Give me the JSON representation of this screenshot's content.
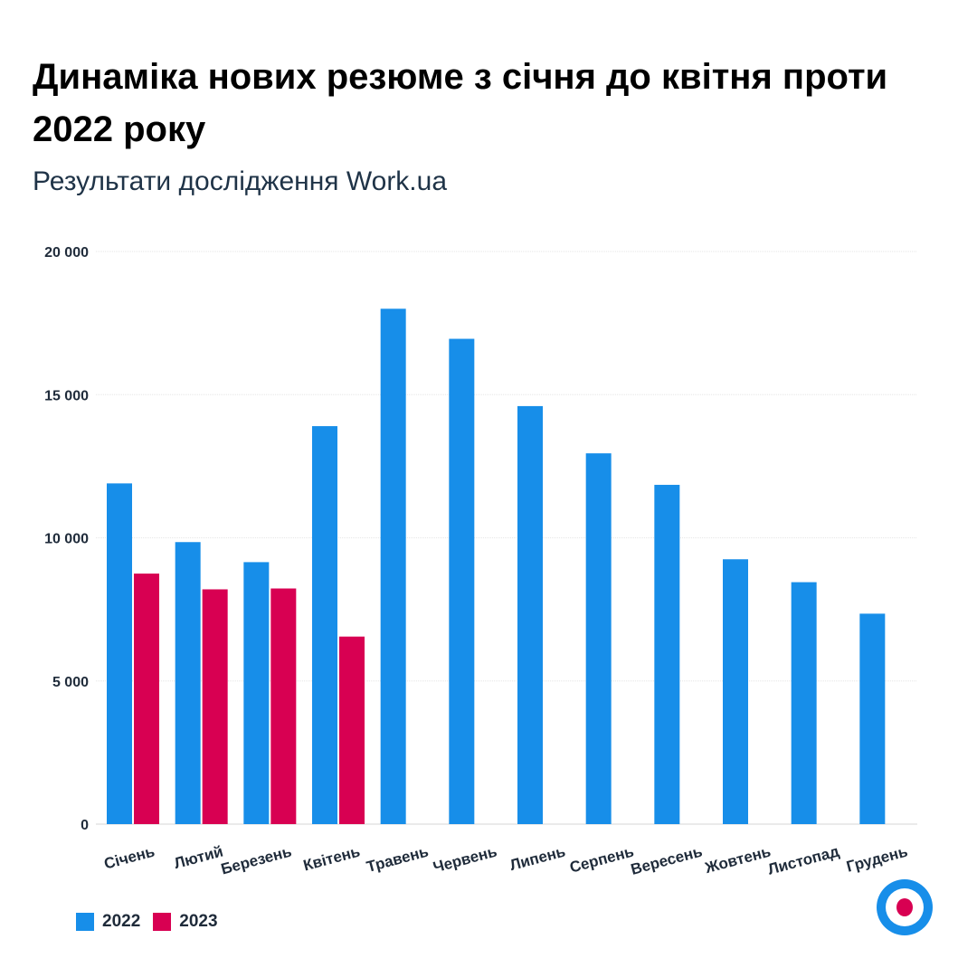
{
  "header": {
    "title": "Динаміка нових резюме з січня до квітня проти 2022 року",
    "subtitle": "Результати дослідження Work.ua"
  },
  "colors": {
    "series_2022": "#178ee9",
    "series_2023": "#d80052",
    "grid": "#e6e6e6",
    "text": "#1f2b3a"
  },
  "chart_data": {
    "type": "bar",
    "title": "Динаміка нових резюме з січня до квітня проти 2022 року",
    "subtitle": "Результати дослідження Work.ua",
    "categories": [
      "Січень",
      "Лютий",
      "Березень",
      "Квітень",
      "Травень",
      "Червень",
      "Липень",
      "Серпень",
      "Вересень",
      "Жовтень",
      "Листопад",
      "Грудень"
    ],
    "series": [
      {
        "name": "2022",
        "color": "#178ee9",
        "values": [
          11900,
          9850,
          9150,
          13900,
          18000,
          16950,
          14600,
          12950,
          11850,
          9250,
          8450,
          7350
        ]
      },
      {
        "name": "2023",
        "color": "#d80052",
        "values": [
          8750,
          8200,
          8230,
          6550,
          null,
          null,
          null,
          null,
          null,
          null,
          null,
          null
        ]
      }
    ],
    "ylim": [
      0,
      20000
    ],
    "yticks": [
      0,
      5000,
      10000,
      15000,
      20000
    ],
    "ytick_labels": [
      "0",
      "5 000",
      "10 000",
      "15 000",
      "20 000"
    ],
    "grid": true,
    "legend": "bottom-left"
  },
  "logo": {
    "icon": "work-ua-logo-icon"
  }
}
